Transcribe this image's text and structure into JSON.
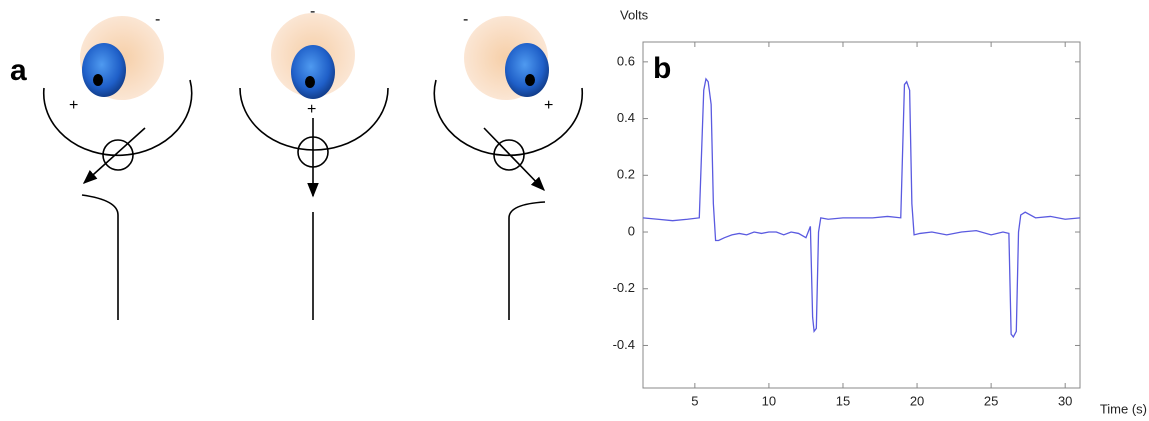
{
  "figure_labels": [
    "a",
    "b"
  ],
  "diagram": {
    "eyes": [
      {
        "top_sign": "-",
        "side_sign": "+"
      },
      {
        "top_sign": "-",
        "side_sign": "+"
      },
      {
        "top_sign": "-",
        "side_sign": "+"
      }
    ]
  },
  "chart_data": {
    "type": "line",
    "y_label": "Volts",
    "x_label": "Time (s)",
    "x": [
      1.5,
      2.5,
      3.5,
      4.5,
      5.3,
      5.6,
      5.75,
      5.9,
      6.1,
      6.25,
      6.4,
      6.6,
      7,
      7.5,
      8,
      8.5,
      9,
      9.5,
      10,
      10.5,
      11,
      11.5,
      12,
      12.5,
      12.8,
      12.95,
      13.05,
      13.2,
      13.35,
      13.5,
      14,
      15,
      16,
      17,
      18,
      18.9,
      19.15,
      19.3,
      19.5,
      19.65,
      19.8,
      20.2,
      21,
      22,
      23,
      24,
      25,
      25.8,
      26.2,
      26.35,
      26.5,
      26.7,
      26.85,
      27,
      27.3,
      28,
      29,
      30,
      31
    ],
    "values": [
      0.05,
      0.045,
      0.04,
      0.045,
      0.05,
      0.5,
      0.54,
      0.53,
      0.45,
      0.1,
      -0.03,
      -0.03,
      -0.02,
      -0.01,
      -0.005,
      -0.01,
      0.0,
      -0.005,
      0.0,
      0.0,
      -0.01,
      0.0,
      -0.005,
      -0.02,
      0.02,
      -0.3,
      -0.35,
      -0.34,
      0.0,
      0.05,
      0.045,
      0.05,
      0.05,
      0.05,
      0.055,
      0.05,
      0.52,
      0.53,
      0.5,
      0.1,
      -0.01,
      -0.005,
      0.0,
      -0.01,
      0.0,
      0.005,
      -0.01,
      0.0,
      -0.005,
      -0.36,
      -0.37,
      -0.35,
      0.0,
      0.06,
      0.07,
      0.05,
      0.055,
      0.045,
      0.05
    ],
    "color": "#5a5ae0",
    "xlim": [
      1.5,
      31
    ],
    "ylim": [
      -0.55,
      0.67
    ],
    "xticks": [
      5,
      10,
      15,
      20,
      25,
      30
    ],
    "yticks": [
      -0.4,
      -0.2,
      0,
      0.2,
      0.4,
      0.6
    ]
  }
}
